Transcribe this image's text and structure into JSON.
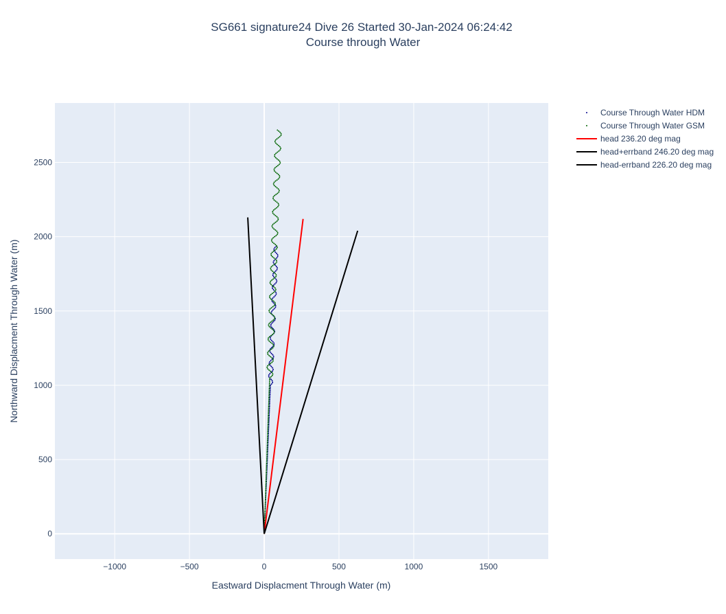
{
  "chart_data": {
    "type": "line",
    "title": "SG661 signature24 Dive 26 Started 30-Jan-2024 06:24:42",
    "subtitle": "Course through Water",
    "xlabel": "Eastward Displacment Through Water (m)",
    "ylabel": "Northward Displacment Through Water (m)",
    "xlim": [
      -1400,
      1900
    ],
    "ylim": [
      -170,
      2900
    ],
    "xticks": [
      -1000,
      -500,
      0,
      500,
      1000,
      1500
    ],
    "xtick_labels": [
      "−1000",
      "−500",
      "0",
      "500",
      "1000",
      "1500"
    ],
    "yticks": [
      0,
      500,
      1000,
      1500,
      2000,
      2500
    ],
    "ytick_labels": [
      "0",
      "500",
      "1000",
      "1500",
      "2000",
      "2500"
    ],
    "grid": true,
    "legend_position": "top-right",
    "series": [
      {
        "name": "Course Through Water HDM",
        "mode": "markers",
        "color": "#00008b",
        "shape": "wiggle",
        "y_start": 0,
        "y_end": 1940,
        "x_start": 0,
        "x_end": 80,
        "wiggle_amp": 14,
        "wiggle_period": 85,
        "wiggle_start_y": 1000
      },
      {
        "name": "Course Through Water GSM",
        "mode": "markers",
        "color": "#006400",
        "shape": "wiggle",
        "y_start": 0,
        "y_end": 2720,
        "x_start": 0,
        "x_end": 95,
        "wiggle_amp": 20,
        "wiggle_period": 95,
        "wiggle_start_y": 1050
      },
      {
        "name": "head 236.20 deg mag",
        "mode": "lines",
        "color": "#ff0000",
        "x": [
          0,
          260
        ],
        "y": [
          0,
          2120
        ]
      },
      {
        "name": "head+errband 246.20 deg mag",
        "mode": "lines",
        "color": "#000000",
        "x": [
          0,
          -110
        ],
        "y": [
          0,
          2130
        ]
      },
      {
        "name": "head-errband 226.20 deg mag",
        "mode": "lines",
        "color": "#000000",
        "x": [
          0,
          625
        ],
        "y": [
          0,
          2040
        ]
      }
    ]
  }
}
